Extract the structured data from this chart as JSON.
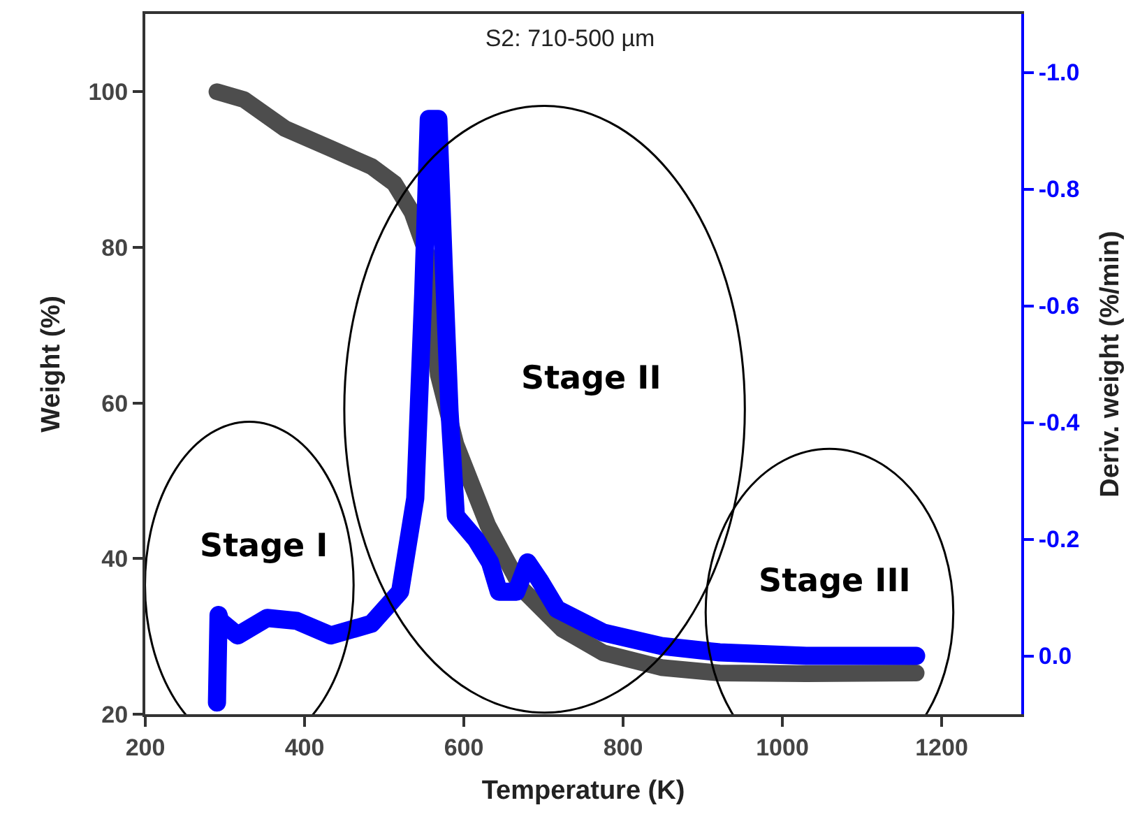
{
  "chart_data": {
    "type": "line",
    "title": "S2: 710-500 µm",
    "xlabel": "Temperature (K)",
    "ylabel": "Weight (%)",
    "y2label": "Deriv. weight (%/min)",
    "xlim": [
      200,
      1300
    ],
    "xticks": [
      200,
      400,
      600,
      800,
      1000,
      1200
    ],
    "ylim": [
      20,
      110
    ],
    "yticks": [
      20,
      40,
      60,
      80,
      100
    ],
    "y2lim": [
      0.1,
      -1.1
    ],
    "y2ticks": [
      {
        "value": -1.0,
        "label": "-1.0"
      },
      {
        "value": -0.8,
        "label": "-0.8"
      },
      {
        "value": -0.6,
        "label": "-0.6"
      },
      {
        "value": -0.4,
        "label": "-0.4"
      },
      {
        "value": -0.2,
        "label": "-0.2"
      },
      {
        "value": 0.0,
        "label": "0.0"
      }
    ],
    "line_style": "solid",
    "series": [
      {
        "color": "#4d4d4d",
        "x": [
          290,
          324,
          375,
          433,
          484,
          513,
          535,
          553,
          560,
          568,
          590,
          630,
          673,
          724,
          775,
          848,
          921,
          1030,
          1168
        ],
        "values": [
          100,
          99.0,
          95.3,
          92.7,
          90.4,
          88.2,
          84.5,
          79.3,
          72.5,
          63.6,
          54.7,
          44.3,
          36.1,
          30.9,
          27.9,
          26.0,
          25.3,
          25.2,
          25.3
        ]
      },
      {
        "color": "#0000ff",
        "axis": "y2",
        "x": [
          290,
          292,
          294,
          316,
          353,
          390,
          433,
          484,
          520,
          539,
          549,
          556,
          568,
          575,
          582,
          590,
          615,
          633,
          644,
          666,
          680,
          695,
          717,
          775,
          848,
          921,
          1030,
          1168
        ],
        "values": [
          0.08,
          -0.07,
          -0.06,
          -0.035,
          -0.065,
          -0.06,
          -0.035,
          -0.055,
          -0.11,
          -0.27,
          -0.62,
          -0.92,
          -0.92,
          -0.66,
          -0.42,
          -0.24,
          -0.2,
          -0.16,
          -0.11,
          -0.11,
          -0.16,
          -0.13,
          -0.08,
          -0.04,
          -0.017,
          -0.006,
          0.0,
          0.0
        ]
      }
    ],
    "annotations": [
      "Stage I",
      "Stage II",
      "Stage III"
    ]
  }
}
